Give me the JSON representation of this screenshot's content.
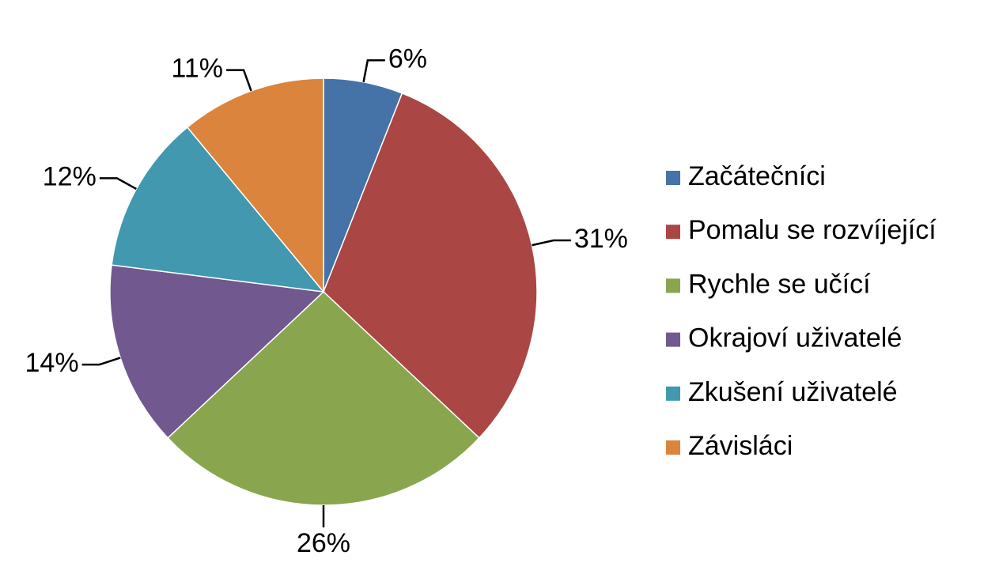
{
  "chart_data": {
    "type": "pie",
    "categories": [
      "Začátečníci",
      "Pomalu se rozvíjející",
      "Rychle se učící",
      "Okrajoví uživatelé",
      "Zkušení uživatelé",
      "Závisláci"
    ],
    "values": [
      6,
      31,
      26,
      14,
      12,
      11
    ],
    "value_labels": [
      "6%",
      "31%",
      "26%",
      "14%",
      "12%",
      "11%"
    ],
    "colors": [
      "#4572a7",
      "#aa4643",
      "#89a54e",
      "#71588f",
      "#4198af",
      "#db843d"
    ],
    "legend": "right"
  }
}
